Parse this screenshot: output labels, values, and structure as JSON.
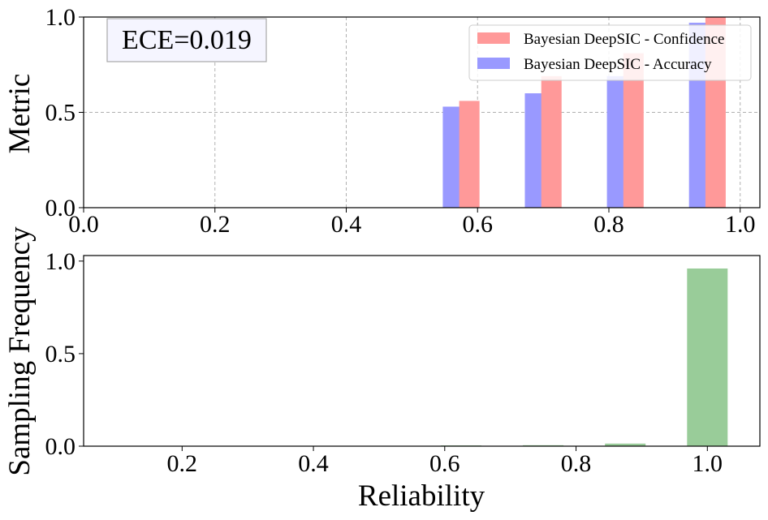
{
  "chart_data": [
    {
      "type": "bar",
      "ylabel": "Metric",
      "xlim": [
        0.0,
        1.03
      ],
      "ylim": [
        0.0,
        1.0
      ],
      "xticks": [
        "0.0",
        "0.2",
        "0.4",
        "0.6",
        "0.8",
        "1.0"
      ],
      "yticks": [
        "0.0",
        "0.5",
        "1.0"
      ],
      "grid": true,
      "legend_position": "top-right",
      "annotation": "ECE=0.019",
      "series": [
        {
          "name": "Bayesian DeepSIC - Accuracy",
          "color": "#9999ff",
          "x": [
            0.5625,
            0.6875,
            0.8125,
            0.9375
          ],
          "values": [
            0.53,
            0.6,
            0.69,
            0.97
          ]
        },
        {
          "name": "Bayesian DeepSIC - Confidence",
          "color": "#ff9999",
          "x": [
            0.5875,
            0.7125,
            0.8375,
            0.9625
          ],
          "values": [
            0.56,
            0.69,
            0.81,
            1.0
          ]
        }
      ]
    },
    {
      "type": "bar",
      "xlabel": "Reliability",
      "ylabel": "Sampling Frequency",
      "xlim": [
        0.05,
        1.08
      ],
      "ylim": [
        0.0,
        1.03
      ],
      "xticks": [
        "0.2",
        "0.4",
        "0.6",
        "0.8",
        "1.0"
      ],
      "yticks": [
        "0.0",
        "0.5",
        "1.0"
      ],
      "series": [
        {
          "color": "#99cc99",
          "x": [
            0.625,
            0.75,
            0.875,
            1.0
          ],
          "values": [
            0.004,
            0.005,
            0.014,
            0.96
          ]
        }
      ]
    }
  ]
}
